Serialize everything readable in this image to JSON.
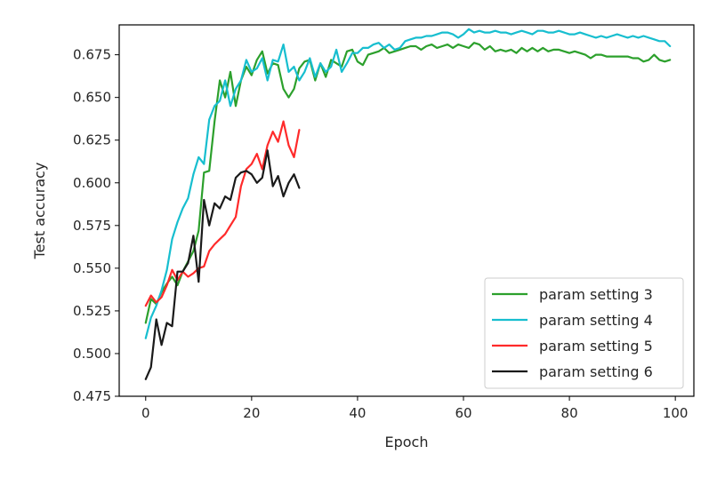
{
  "chart_data": {
    "type": "line",
    "xlabel": "Epoch",
    "ylabel": "Test accuracy",
    "xlim": [
      -5,
      103.5
    ],
    "ylim": [
      0.475,
      0.6925
    ],
    "xticks": [
      0,
      20,
      40,
      60,
      80,
      100
    ],
    "yticks": [
      0.475,
      0.5,
      0.525,
      0.55,
      0.575,
      0.6,
      0.625,
      0.65,
      0.675
    ],
    "xtick_labels": [
      "0",
      "20",
      "40",
      "60",
      "80",
      "100"
    ],
    "ytick_labels": [
      "0.475",
      "0.500",
      "0.525",
      "0.550",
      "0.575",
      "0.600",
      "0.625",
      "0.650",
      "0.675"
    ],
    "grid": false,
    "legend_position": "bottom-right",
    "series": [
      {
        "name": "param setting 3",
        "color": "#2ca02c",
        "x": [
          0,
          1,
          2,
          3,
          4,
          5,
          6,
          7,
          8,
          9,
          10,
          11,
          12,
          13,
          14,
          15,
          16,
          17,
          18,
          19,
          20,
          21,
          22,
          23,
          24,
          25,
          26,
          27,
          28,
          29,
          30,
          31,
          32,
          33,
          34,
          35,
          36,
          37,
          38,
          39,
          40,
          41,
          42,
          43,
          44,
          45,
          46,
          47,
          48,
          49,
          50,
          51,
          52,
          53,
          54,
          55,
          56,
          57,
          58,
          59,
          60,
          61,
          62,
          63,
          64,
          65,
          66,
          67,
          68,
          69,
          70,
          71,
          72,
          73,
          74,
          75,
          76,
          77,
          78,
          79,
          80,
          81,
          82,
          83,
          84,
          85,
          86,
          87,
          88,
          89,
          90,
          91,
          92,
          93,
          94,
          95,
          96,
          97,
          98,
          99
        ],
        "y": [
          0.518,
          0.532,
          0.529,
          0.536,
          0.541,
          0.545,
          0.54,
          0.548,
          0.554,
          0.56,
          0.572,
          0.606,
          0.607,
          0.636,
          0.66,
          0.65,
          0.665,
          0.645,
          0.66,
          0.668,
          0.663,
          0.672,
          0.677,
          0.664,
          0.67,
          0.669,
          0.655,
          0.65,
          0.655,
          0.667,
          0.671,
          0.672,
          0.66,
          0.67,
          0.662,
          0.672,
          0.67,
          0.668,
          0.677,
          0.678,
          0.671,
          0.669,
          0.675,
          0.676,
          0.677,
          0.679,
          0.676,
          0.677,
          0.678,
          0.679,
          0.68,
          0.68,
          0.678,
          0.68,
          0.681,
          0.679,
          0.68,
          0.681,
          0.679,
          0.681,
          0.68,
          0.679,
          0.682,
          0.681,
          0.678,
          0.68,
          0.677,
          0.678,
          0.677,
          0.678,
          0.676,
          0.679,
          0.677,
          0.679,
          0.677,
          0.679,
          0.677,
          0.678,
          0.678,
          0.677,
          0.676,
          0.677,
          0.676,
          0.675,
          0.673,
          0.675,
          0.675,
          0.674,
          0.674,
          0.674,
          0.674,
          0.674,
          0.673,
          0.673,
          0.671,
          0.672,
          0.675,
          0.672,
          0.671,
          0.672
        ]
      },
      {
        "name": "param setting 4",
        "color": "#17becf",
        "x": [
          0,
          1,
          2,
          3,
          4,
          5,
          6,
          7,
          8,
          9,
          10,
          11,
          12,
          13,
          14,
          15,
          16,
          17,
          18,
          19,
          20,
          21,
          22,
          23,
          24,
          25,
          26,
          27,
          28,
          29,
          30,
          31,
          32,
          33,
          34,
          35,
          36,
          37,
          38,
          39,
          40,
          41,
          42,
          43,
          44,
          45,
          46,
          47,
          48,
          49,
          50,
          51,
          52,
          53,
          54,
          55,
          56,
          57,
          58,
          59,
          60,
          61,
          62,
          63,
          64,
          65,
          66,
          67,
          68,
          69,
          70,
          71,
          72,
          73,
          74,
          75,
          76,
          77,
          78,
          79,
          80,
          81,
          82,
          83,
          84,
          85,
          86,
          87,
          88,
          89,
          90,
          91,
          92,
          93,
          94,
          95,
          96,
          97,
          98,
          99
        ],
        "y": [
          0.509,
          0.521,
          0.528,
          0.537,
          0.549,
          0.567,
          0.577,
          0.585,
          0.591,
          0.605,
          0.615,
          0.611,
          0.637,
          0.645,
          0.648,
          0.66,
          0.645,
          0.655,
          0.66,
          0.672,
          0.665,
          0.667,
          0.673,
          0.66,
          0.672,
          0.671,
          0.681,
          0.665,
          0.668,
          0.66,
          0.665,
          0.673,
          0.662,
          0.67,
          0.665,
          0.668,
          0.678,
          0.665,
          0.67,
          0.676,
          0.676,
          0.679,
          0.679,
          0.681,
          0.682,
          0.679,
          0.681,
          0.678,
          0.679,
          0.683,
          0.684,
          0.685,
          0.685,
          0.686,
          0.686,
          0.687,
          0.688,
          0.688,
          0.687,
          0.685,
          0.687,
          0.69,
          0.688,
          0.689,
          0.688,
          0.688,
          0.689,
          0.688,
          0.688,
          0.687,
          0.688,
          0.689,
          0.688,
          0.687,
          0.689,
          0.689,
          0.688,
          0.688,
          0.689,
          0.688,
          0.687,
          0.687,
          0.688,
          0.687,
          0.686,
          0.685,
          0.686,
          0.685,
          0.686,
          0.687,
          0.686,
          0.685,
          0.686,
          0.685,
          0.686,
          0.685,
          0.684,
          0.683,
          0.683,
          0.68
        ]
      },
      {
        "name": "param setting 5",
        "color": "#ff2a2a",
        "x": [
          0,
          1,
          2,
          3,
          4,
          5,
          6,
          7,
          8,
          9,
          10,
          11,
          12,
          13,
          14,
          15,
          16,
          17,
          18,
          19,
          20,
          21,
          22,
          23,
          24,
          25,
          26,
          27,
          28,
          29
        ],
        "y": [
          0.528,
          0.534,
          0.53,
          0.533,
          0.54,
          0.549,
          0.543,
          0.548,
          0.545,
          0.547,
          0.55,
          0.551,
          0.56,
          0.564,
          0.567,
          0.57,
          0.575,
          0.58,
          0.598,
          0.608,
          0.611,
          0.617,
          0.608,
          0.622,
          0.63,
          0.624,
          0.636,
          0.622,
          0.615,
          0.631
        ]
      },
      {
        "name": "param setting 6",
        "color": "#1a1a1a",
        "x": [
          0,
          1,
          2,
          3,
          4,
          5,
          6,
          7,
          8,
          9,
          10,
          11,
          12,
          13,
          14,
          15,
          16,
          17,
          18,
          19,
          20,
          21,
          22,
          23,
          24,
          25,
          26,
          27,
          28,
          29
        ],
        "y": [
          0.485,
          0.492,
          0.52,
          0.505,
          0.518,
          0.516,
          0.548,
          0.548,
          0.553,
          0.569,
          0.542,
          0.59,
          0.575,
          0.588,
          0.585,
          0.592,
          0.59,
          0.603,
          0.606,
          0.607,
          0.605,
          0.6,
          0.603,
          0.619,
          0.598,
          0.604,
          0.592,
          0.6,
          0.605,
          0.597
        ]
      }
    ]
  }
}
